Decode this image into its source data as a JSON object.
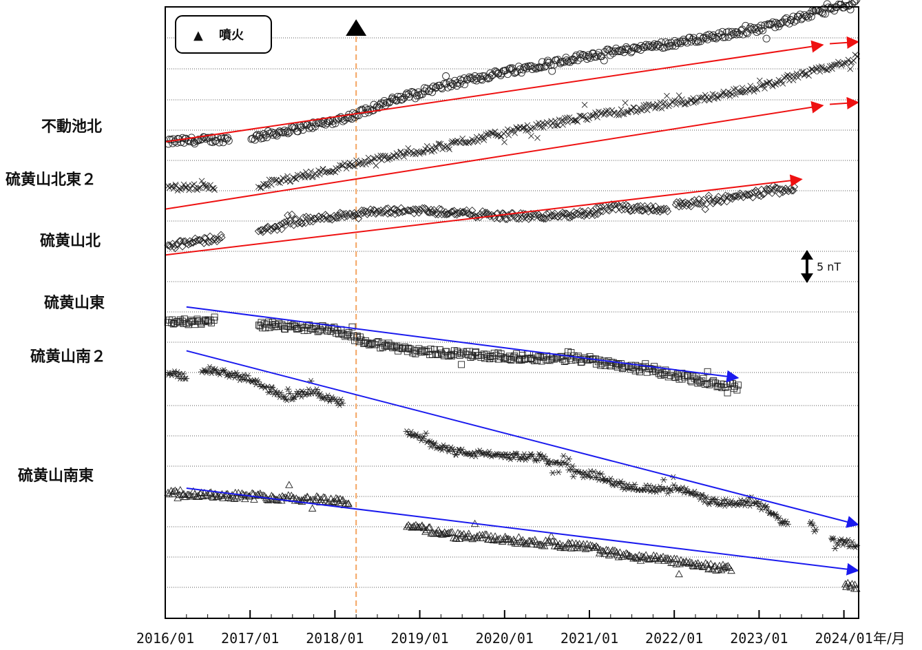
{
  "chart_data": {
    "type": "scatter",
    "title": "",
    "xlabel": "",
    "ylabel": "",
    "x_unit_label": "年/月",
    "x_ticks": [
      "2016/01",
      "2017/01",
      "2018/01",
      "2019/01",
      "2020/01",
      "2021/01",
      "2022/01",
      "2023/01",
      "2024/01"
    ],
    "grid": "horizontal-dotted",
    "legend": {
      "position": "top-left",
      "symbol": "▲",
      "label": "噴火"
    },
    "eruption": {
      "date": "2018/04",
      "marker": "▲",
      "line_color": "#f4a460"
    },
    "scale_bar": {
      "label": "5 nT",
      "value_nT": 5
    },
    "series": [
      {
        "name": "不動池北",
        "marker": "circle",
        "gaps": [
          [
            "2016/10",
            "2017/01"
          ]
        ],
        "anchors": [
          [
            "2016/01",
            0
          ],
          [
            "2016/10",
            0.5
          ],
          [
            "2017/01",
            0.6
          ],
          [
            "2018/01",
            3.5
          ],
          [
            "2018/04",
            4.5
          ],
          [
            "2018/07",
            6.0
          ],
          [
            "2019/01",
            8.2
          ],
          [
            "2020/01",
            11.6
          ],
          [
            "2021/01",
            14.3
          ],
          [
            "2022/01",
            16.3
          ],
          [
            "2023/01",
            18.7
          ],
          [
            "2024/01",
            22.5
          ],
          [
            "2024/03",
            23.0
          ]
        ],
        "trend": {
          "color": "red",
          "from": [
            "2016/01",
            0
          ],
          "to": [
            "2023/10",
            16.0
          ],
          "extension": [
            [
              "2023/11",
              16.2
            ],
            [
              "2024/03",
              16.5
            ]
          ]
        }
      },
      {
        "name": "硫黄山北東２",
        "marker": "cross",
        "gaps": [
          [
            "2016/08",
            "2017/02"
          ]
        ],
        "anchors": [
          [
            "2016/01",
            0
          ],
          [
            "2016/08",
            0
          ],
          [
            "2017/02",
            0.3
          ],
          [
            "2018/01",
            3.0
          ],
          [
            "2018/04",
            4.0
          ],
          [
            "2019/01",
            6.0
          ],
          [
            "2020/01",
            9.0
          ],
          [
            "2021/01",
            11.7
          ],
          [
            "2022/01",
            13.8
          ],
          [
            "2023/01",
            16.5
          ],
          [
            "2024/01",
            20.5
          ],
          [
            "2024/03",
            21.2
          ]
        ],
        "trend": {
          "color": "red",
          "from": [
            "2016/01",
            -3.6
          ],
          "to": [
            "2023/10",
            13.5
          ],
          "extension": [
            [
              "2023/11",
              13.7
            ],
            [
              "2024/03",
              14.0
            ]
          ]
        }
      },
      {
        "name": "硫黄山北",
        "marker": "diamond",
        "gaps": [
          [
            "2016/09",
            "2017/02"
          ],
          [
            "2021/12",
            "2022/01"
          ]
        ],
        "anchors": [
          [
            "2016/01",
            0
          ],
          [
            "2016/09",
            1.5
          ],
          [
            "2017/02",
            2.3
          ],
          [
            "2017/08",
            4.2
          ],
          [
            "2018/04",
            5.5
          ],
          [
            "2019/01",
            6.0
          ],
          [
            "2019/06",
            5.6
          ],
          [
            "2020/01",
            5.0
          ],
          [
            "2020/06",
            5.0
          ],
          [
            "2021/01",
            5.4
          ],
          [
            "2021/04",
            6.5
          ],
          [
            "2021/12",
            6.2
          ],
          [
            "2022/01",
            6.8
          ],
          [
            "2022/10",
            8.2
          ],
          [
            "2023/06",
            9.8
          ]
        ],
        "trend": {
          "color": "red",
          "from": [
            "2016/01",
            -1.4
          ],
          "to": [
            "2023/07",
            11.1
          ]
        }
      },
      {
        "name": "硫黄山東",
        "marker": "square",
        "gaps": [
          [
            "2016/08",
            "2017/02"
          ]
        ],
        "anchors": [
          [
            "2016/01",
            0
          ],
          [
            "2016/08",
            -0.3
          ],
          [
            "2017/02",
            -0.6
          ],
          [
            "2018/01",
            -1.4
          ],
          [
            "2018/03",
            -2.4
          ],
          [
            "2018/06",
            -3.7
          ],
          [
            "2019/01",
            -5.0
          ],
          [
            "2020/01",
            -5.9
          ],
          [
            "2021/01",
            -6.4
          ],
          [
            "2022/01",
            -8.9
          ],
          [
            "2022/06",
            -10.2
          ],
          [
            "2022/10",
            -11.0
          ]
        ],
        "trend": {
          "color": "blue",
          "from": [
            "2016/04",
            2.3
          ],
          "to": [
            "2022/10",
            -9.4
          ]
        }
      },
      {
        "name": "硫黄山南２",
        "marker": "asterisk",
        "gaps": [
          [
            "2016/04",
            "2016/06"
          ],
          [
            "2018/02",
            "2018/11"
          ],
          [
            "2023/05",
            "2023/08"
          ],
          [
            "2023/09",
            "2023/11"
          ]
        ],
        "anchors": [
          [
            "2016/01",
            0
          ],
          [
            "2016/04",
            -0.5
          ],
          [
            "2016/06",
            0.8
          ],
          [
            "2017/01",
            -1.0
          ],
          [
            "2017/06",
            -4.0
          ],
          [
            "2017/10",
            -3.0
          ],
          [
            "2018/02",
            -5.0
          ],
          [
            "2018/11",
            -9.8
          ],
          [
            "2019/06",
            -13.0
          ],
          [
            "2020/01",
            -13.6
          ],
          [
            "2020/06",
            -14.0
          ],
          [
            "2021/01",
            -16.5
          ],
          [
            "2021/06",
            -18.6
          ],
          [
            "2021/12",
            -19.4
          ],
          [
            "2022/01",
            -18.6
          ],
          [
            "2022/06",
            -21.2
          ],
          [
            "2023/01",
            -21.7
          ],
          [
            "2023/05",
            -25.0
          ],
          [
            "2023/08",
            -24.5
          ],
          [
            "2023/09",
            -26.0
          ],
          [
            "2023/11",
            -27.6
          ],
          [
            "2024/03",
            -28.3
          ]
        ],
        "trend": {
          "color": "blue",
          "from": [
            "2016/04",
            3.7
          ],
          "to": [
            "2024/03",
            -25.0
          ]
        }
      },
      {
        "name": "硫黄山南東",
        "marker": "triangle",
        "gaps": [
          [
            "2018/03",
            "2018/11"
          ],
          [
            "2022/09",
            "2024/01"
          ]
        ],
        "anchors": [
          [
            "2016/01",
            0
          ],
          [
            "2017/01",
            -0.5
          ],
          [
            "2018/01",
            -1.2
          ],
          [
            "2018/03",
            -1.6
          ],
          [
            "2018/11",
            -5.3
          ],
          [
            "2019/06",
            -7.0
          ],
          [
            "2020/01",
            -7.6
          ],
          [
            "2020/06",
            -8.2
          ],
          [
            "2021/01",
            -9.0
          ],
          [
            "2021/06",
            -10.4
          ],
          [
            "2022/01",
            -11.2
          ],
          [
            "2022/09",
            -12.6
          ],
          [
            "2024/01",
            -15.0
          ],
          [
            "2024/03",
            -15.6
          ]
        ],
        "trend": {
          "color": "blue",
          "from": [
            "2016/04",
            0.8
          ],
          "to": [
            "2024/03",
            -12.8
          ]
        }
      }
    ]
  }
}
